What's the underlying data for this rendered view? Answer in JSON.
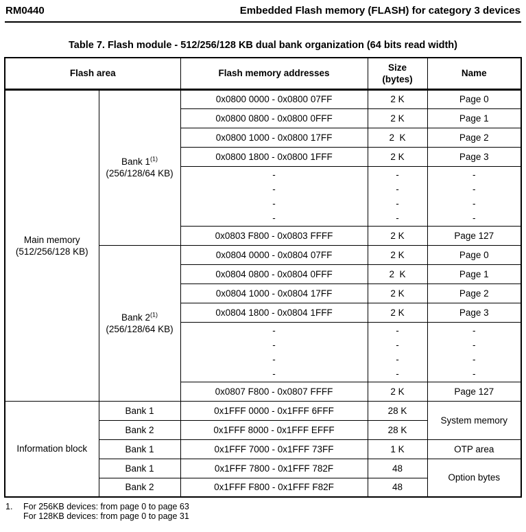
{
  "page_header": {
    "doc_id": "RM0440",
    "chapter_title": "Embedded Flash memory (FLASH) for category 3 devices"
  },
  "table_title": "Table 7. Flash module - 512/256/128 KB dual bank organization (64 bits read width)",
  "header": {
    "flash_area": "Flash area",
    "addresses": "Flash memory addresses",
    "size": [
      "Size",
      "(bytes)"
    ],
    "name": "Name"
  },
  "main_memory": {
    "label": [
      "Main memory",
      "(512/256/128 KB)"
    ],
    "bank1": {
      "name": "Bank 1",
      "ref": "(1)",
      "size_label": "(256/128/64 KB)"
    },
    "bank2": {
      "name": "Bank 2",
      "ref": "(1)",
      "size_label": "(256/128/64 KB)"
    },
    "ellipsis": [
      "-",
      "-",
      "-",
      "-"
    ],
    "bank1_rows": [
      {
        "addr": "0x0800 0000 - 0x0800 07FF",
        "size": "2 K",
        "page": "Page 0"
      },
      {
        "addr": "0x0800 0800 - 0x0800 0FFF",
        "size": "2 K",
        "page": "Page 1"
      },
      {
        "addr": "0x0800 1000 - 0x0800 17FF",
        "size": "2  K",
        "page": "Page 2"
      },
      {
        "addr": "0x0800 1800 - 0x0800 1FFF",
        "size": "2 K",
        "page": "Page 3"
      },
      {
        "addr": "0x0803 F800 - 0x0803 FFFF",
        "size": "2 K",
        "page": "Page 127"
      }
    ],
    "bank2_rows": [
      {
        "addr": "0x0804 0000 - 0x0804 07FF",
        "size": "2 K",
        "page": "Page 0"
      },
      {
        "addr": "0x0804 0800 - 0x0804 0FFF",
        "size": "2  K",
        "page": "Page 1"
      },
      {
        "addr": "0x0804 1000 - 0x0804 17FF",
        "size": "2 K",
        "page": "Page 2"
      },
      {
        "addr": "0x0804 1800 - 0x0804 1FFF",
        "size": "2 K",
        "page": "Page 3"
      },
      {
        "addr": "0x0807 F800 - 0x0807 FFFF",
        "size": "2 K",
        "page": "Page 127"
      }
    ]
  },
  "information_block": {
    "label": "Information block",
    "rows": [
      {
        "bank": "Bank 1",
        "addr": "0x1FFF 0000 - 0x1FFF 6FFF",
        "size": "28 K"
      },
      {
        "bank": "Bank 2",
        "addr": "0x1FFF 8000 - 0x1FFF EFFF",
        "size": "28 K"
      },
      {
        "bank": "Bank 1",
        "addr": "0x1FFF 7000 - 0x1FFF 73FF",
        "size": "1 K"
      },
      {
        "bank": "Bank 1",
        "addr": "0x1FFF 7800 - 0x1FFF 782F",
        "size": "48"
      },
      {
        "bank": "Bank 2",
        "addr": "0x1FFF F800 - 0x1FFF F82F",
        "size": "48"
      }
    ],
    "system_memory": "System memory",
    "otp_area": "OTP area",
    "option_bytes": "Option bytes"
  },
  "footnote": {
    "number": "1.",
    "line1": "For 256KB devices: from page 0 to page 63",
    "line2": "For 128KB devices: from page 0 to page 31"
  }
}
